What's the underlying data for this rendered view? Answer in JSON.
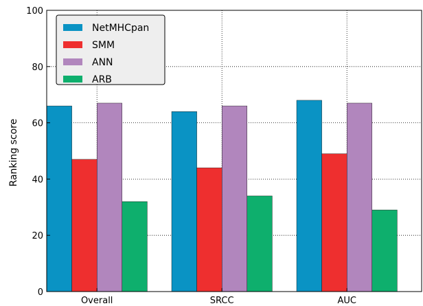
{
  "chart_data": {
    "type": "bar",
    "categories": [
      "Overall",
      "SRCC",
      "AUC"
    ],
    "series": [
      {
        "name": "NetMHCpan",
        "color": "#0a93c4",
        "values": [
          66,
          64,
          68
        ]
      },
      {
        "name": "SMM",
        "color": "#ee2f2f",
        "values": [
          47,
          44,
          49
        ]
      },
      {
        "name": "ANN",
        "color": "#b186bd",
        "values": [
          67,
          66,
          67
        ]
      },
      {
        "name": "ARB",
        "color": "#0eaf6d",
        "values": [
          32,
          34,
          29
        ]
      }
    ],
    "ylabel": "Ranking score",
    "ylim": [
      0,
      100
    ],
    "yticks": [
      "0",
      "20",
      "40",
      "60",
      "80",
      "100"
    ],
    "grid": "dotted",
    "legend_position": "top-left"
  }
}
